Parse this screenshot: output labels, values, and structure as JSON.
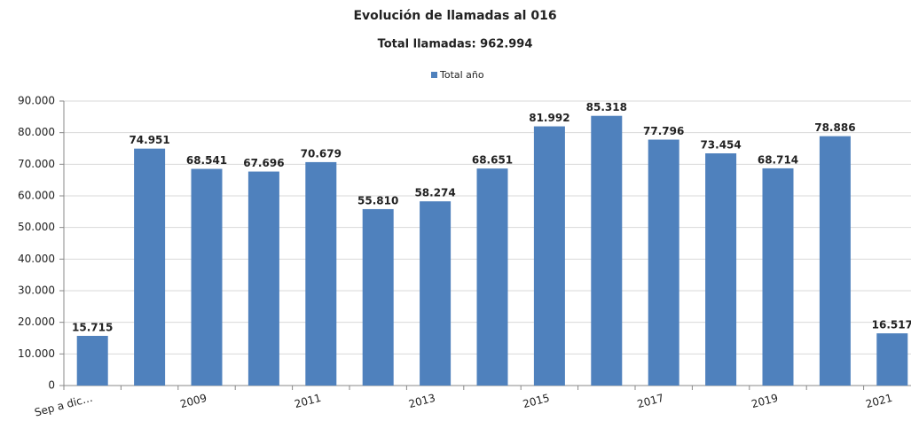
{
  "chart_data": {
    "type": "bar",
    "title": "Evolución de llamadas al 016",
    "subtitle": "Total llamadas: 962.994",
    "categories": [
      "Sep a dic…",
      null,
      "2009",
      null,
      "2011",
      null,
      "2013",
      null,
      "2015",
      null,
      "2017",
      null,
      "2019",
      null,
      "2021"
    ],
    "series": [
      {
        "name": "Total año",
        "color": "#4f81bd",
        "values": [
          15715,
          74951,
          68541,
          67696,
          70679,
          55810,
          58274,
          68651,
          81992,
          85318,
          77796,
          73454,
          68714,
          78886,
          16517
        ],
        "value_labels": [
          "15.715",
          "74.951",
          "68.541",
          "67.696",
          "70.679",
          "55.810",
          "58.274",
          "68.651",
          "81.992",
          "85.318",
          "77.796",
          "73.454",
          "68.714",
          "78.886",
          "16.517"
        ]
      }
    ],
    "ylim": [
      0,
      90000
    ],
    "yticks": [
      0,
      {
        "value": 10000,
        "label": "10.000"
      },
      {
        "value": 20000,
        "label": "20.000"
      },
      {
        "value": 30000,
        "label": "30.000"
      },
      {
        "value": 40000,
        "label": "40.000"
      },
      {
        "value": 50000,
        "label": "50.000"
      },
      {
        "value": 60000,
        "label": "60.000"
      },
      {
        "value": 70000,
        "label": "70.000"
      },
      {
        "value": 80000,
        "label": "80.000"
      },
      {
        "value": 90000,
        "label": "90.000"
      }
    ],
    "grid": true,
    "legend": "top"
  }
}
